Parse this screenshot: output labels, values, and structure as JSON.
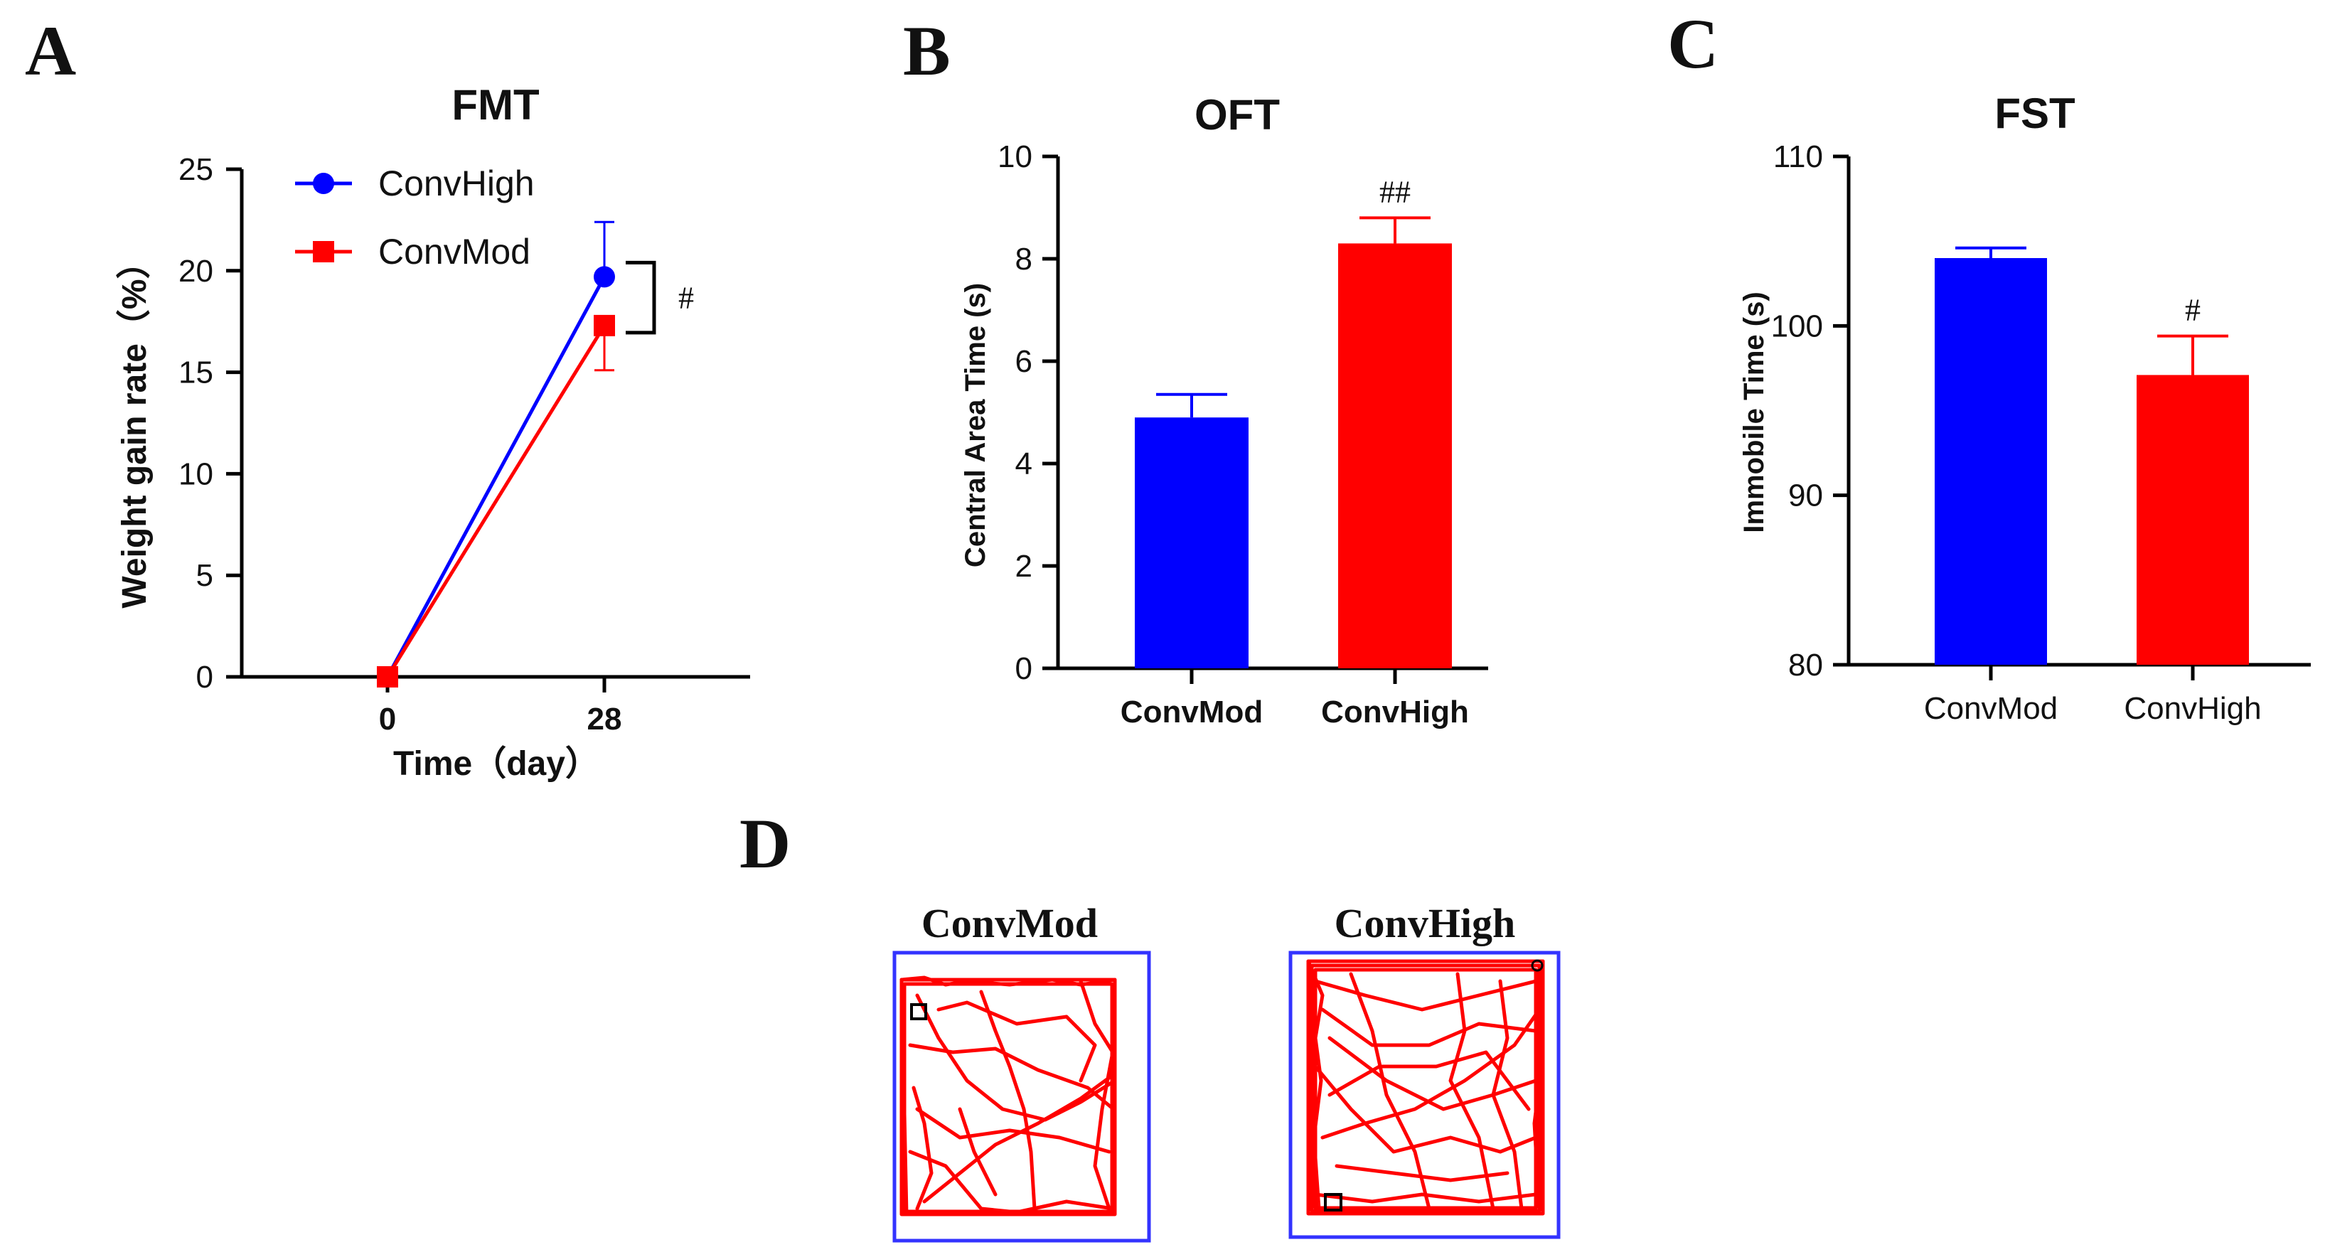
{
  "panels": {
    "a": {
      "letter": "A"
    },
    "b": {
      "letter": "B"
    },
    "c": {
      "letter": "C"
    },
    "d": {
      "letter": "D"
    }
  },
  "chart_data": [
    {
      "type": "line",
      "title": "FMT",
      "xlabel": "Time（day）",
      "ylabel": "Weight gain rate（%）",
      "x": [
        0,
        28
      ],
      "x_tick_labels": [
        "0",
        "28"
      ],
      "ylim": [
        0,
        25
      ],
      "y_ticks": [
        0,
        5,
        10,
        15,
        20,
        25
      ],
      "series": [
        {
          "name": "ConvHigh",
          "values": [
            0,
            19.7
          ],
          "error": [
            0,
            2.7
          ],
          "color": "#0000ff",
          "marker": "circle"
        },
        {
          "name": "ConvMod",
          "values": [
            0,
            17.3
          ],
          "error": [
            0,
            2.2
          ],
          "color": "#ff0000",
          "marker": "square"
        }
      ],
      "annotations": [
        {
          "text": "#",
          "between": [
            "ConvHigh",
            "ConvMod"
          ],
          "x": 28
        }
      ],
      "legend": "top-left",
      "grid": false
    },
    {
      "type": "bar",
      "title": "OFT",
      "xlabel": "",
      "ylabel": "Central Area Time (s)",
      "categories": [
        "ConvMod",
        "ConvHigh"
      ],
      "values": [
        4.9,
        8.3
      ],
      "errors": [
        0.45,
        0.5
      ],
      "colors": [
        "#0000ff",
        "#ff0000"
      ],
      "significance": [
        "",
        "##"
      ],
      "ylim": [
        0,
        10
      ],
      "y_ticks": [
        0,
        2,
        4,
        6,
        8,
        10
      ],
      "grid": false
    },
    {
      "type": "bar",
      "title": "FST",
      "xlabel": "",
      "ylabel": "Immobile Time (s)",
      "categories": [
        "ConvMod",
        "ConvHigh"
      ],
      "values": [
        104.0,
        97.1
      ],
      "errors": [
        0.6,
        2.3
      ],
      "colors": [
        "#0000ff",
        "#ff0000"
      ],
      "significance": [
        "",
        "#"
      ],
      "ylim": [
        80,
        110
      ],
      "y_ticks": [
        80,
        90,
        100,
        110
      ],
      "grid": false
    }
  ],
  "tracks": {
    "items": [
      {
        "title": "ConvMod"
      },
      {
        "title": "ConvHigh"
      }
    ],
    "arena_color": "#3333ff",
    "path_color": "#ff0000"
  }
}
